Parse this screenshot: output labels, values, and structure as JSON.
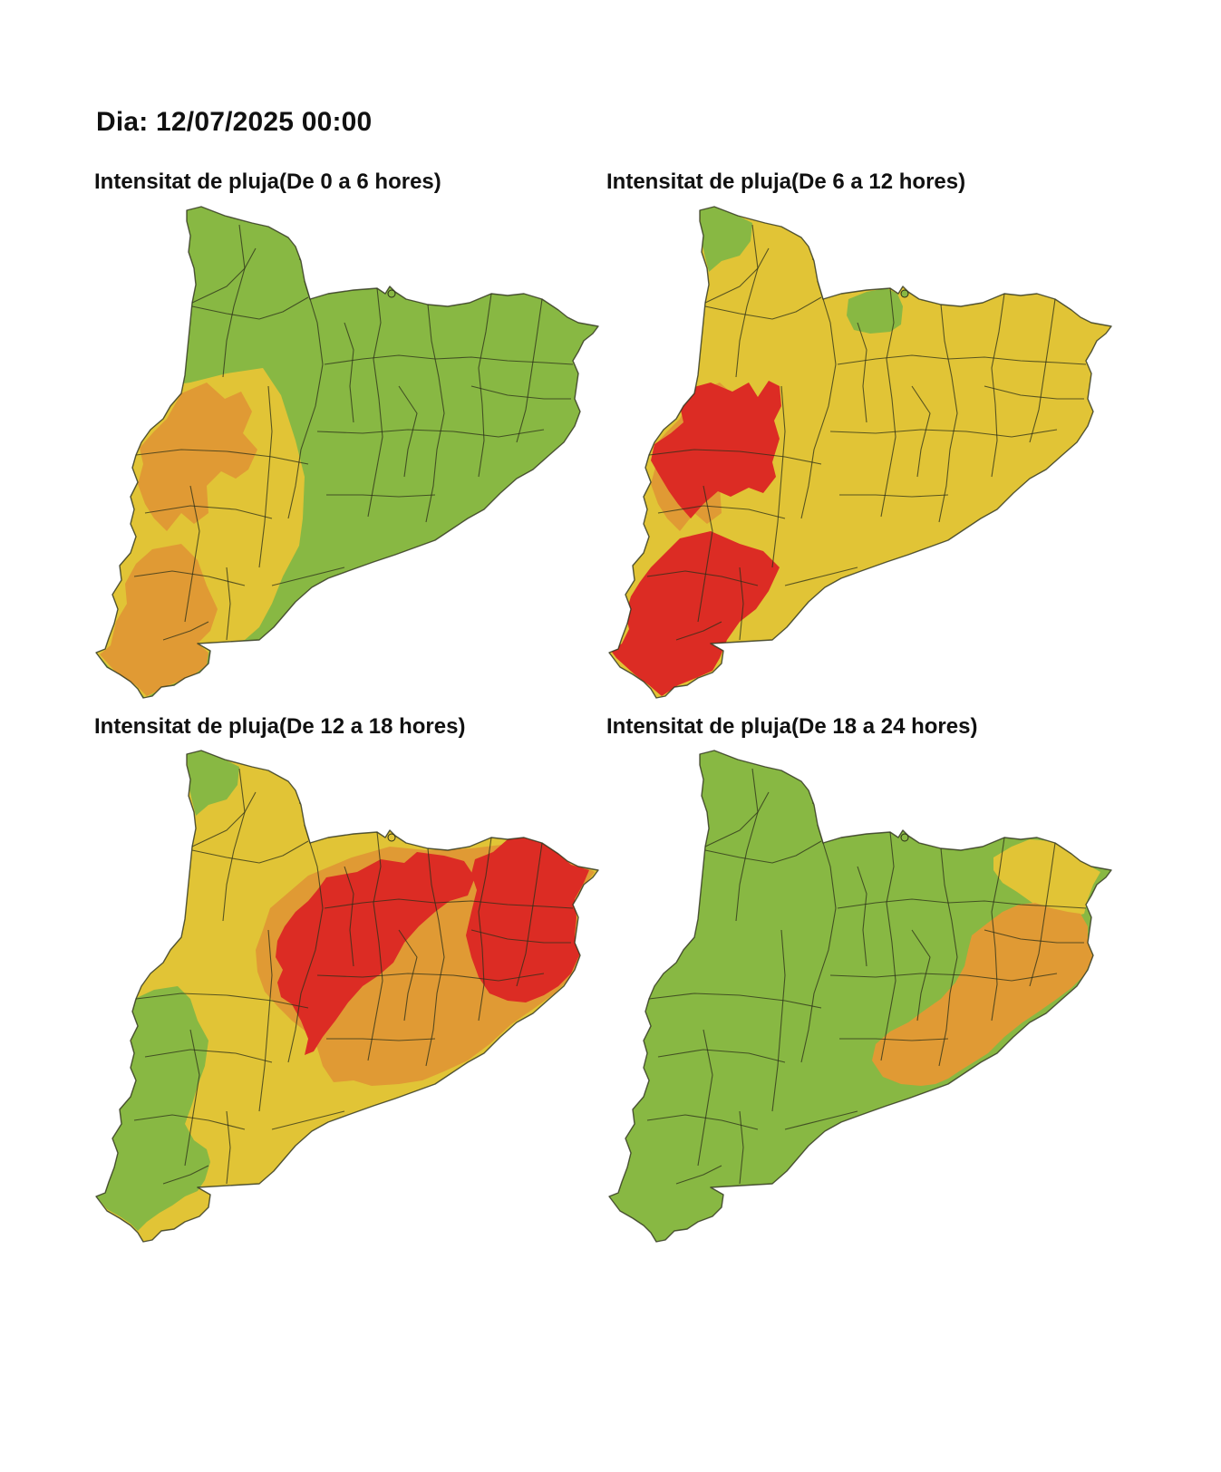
{
  "header": {
    "date_label": "Dia: 12/07/2025 00:00"
  },
  "legend_colors": {
    "green": "#88b843",
    "yellow": "#e1c436",
    "orange": "#e09a34",
    "red": "#dc2c24"
  },
  "panels": [
    {
      "title": "Intensitat de pluja(De 0 a 6 hores)",
      "base": "green",
      "zones": [
        {
          "zone": "south-west",
          "level": "yellow"
        },
        {
          "zone": "west-orange",
          "level": "orange"
        },
        {
          "zone": "ebre-delta",
          "level": "orange"
        }
      ]
    },
    {
      "title": "Intensitat de pluja(De 6 a 12 hores)",
      "base": "yellow",
      "zones": [
        {
          "zone": "val-d-aran",
          "level": "green"
        },
        {
          "zone": "ripolles",
          "level": "green"
        },
        {
          "zone": "west-orange",
          "level": "orange"
        },
        {
          "zone": "west-red",
          "level": "red"
        },
        {
          "zone": "south-red",
          "level": "red"
        }
      ]
    },
    {
      "title": "Intensitat de pluja(De 12 a 18 hores)",
      "base": "yellow",
      "zones": [
        {
          "zone": "val-d-aran",
          "level": "green"
        },
        {
          "zone": "south-west-green",
          "level": "green"
        },
        {
          "zone": "centre-east-orange",
          "level": "orange"
        },
        {
          "zone": "centre-red",
          "level": "red"
        },
        {
          "zone": "north-east-red",
          "level": "red"
        }
      ]
    },
    {
      "title": "Intensitat de pluja(De 18 a 24 hores)",
      "base": "green",
      "zones": [
        {
          "zone": "north-east-yellow",
          "level": "yellow"
        },
        {
          "zone": "coast-orange",
          "level": "orange"
        }
      ]
    }
  ]
}
